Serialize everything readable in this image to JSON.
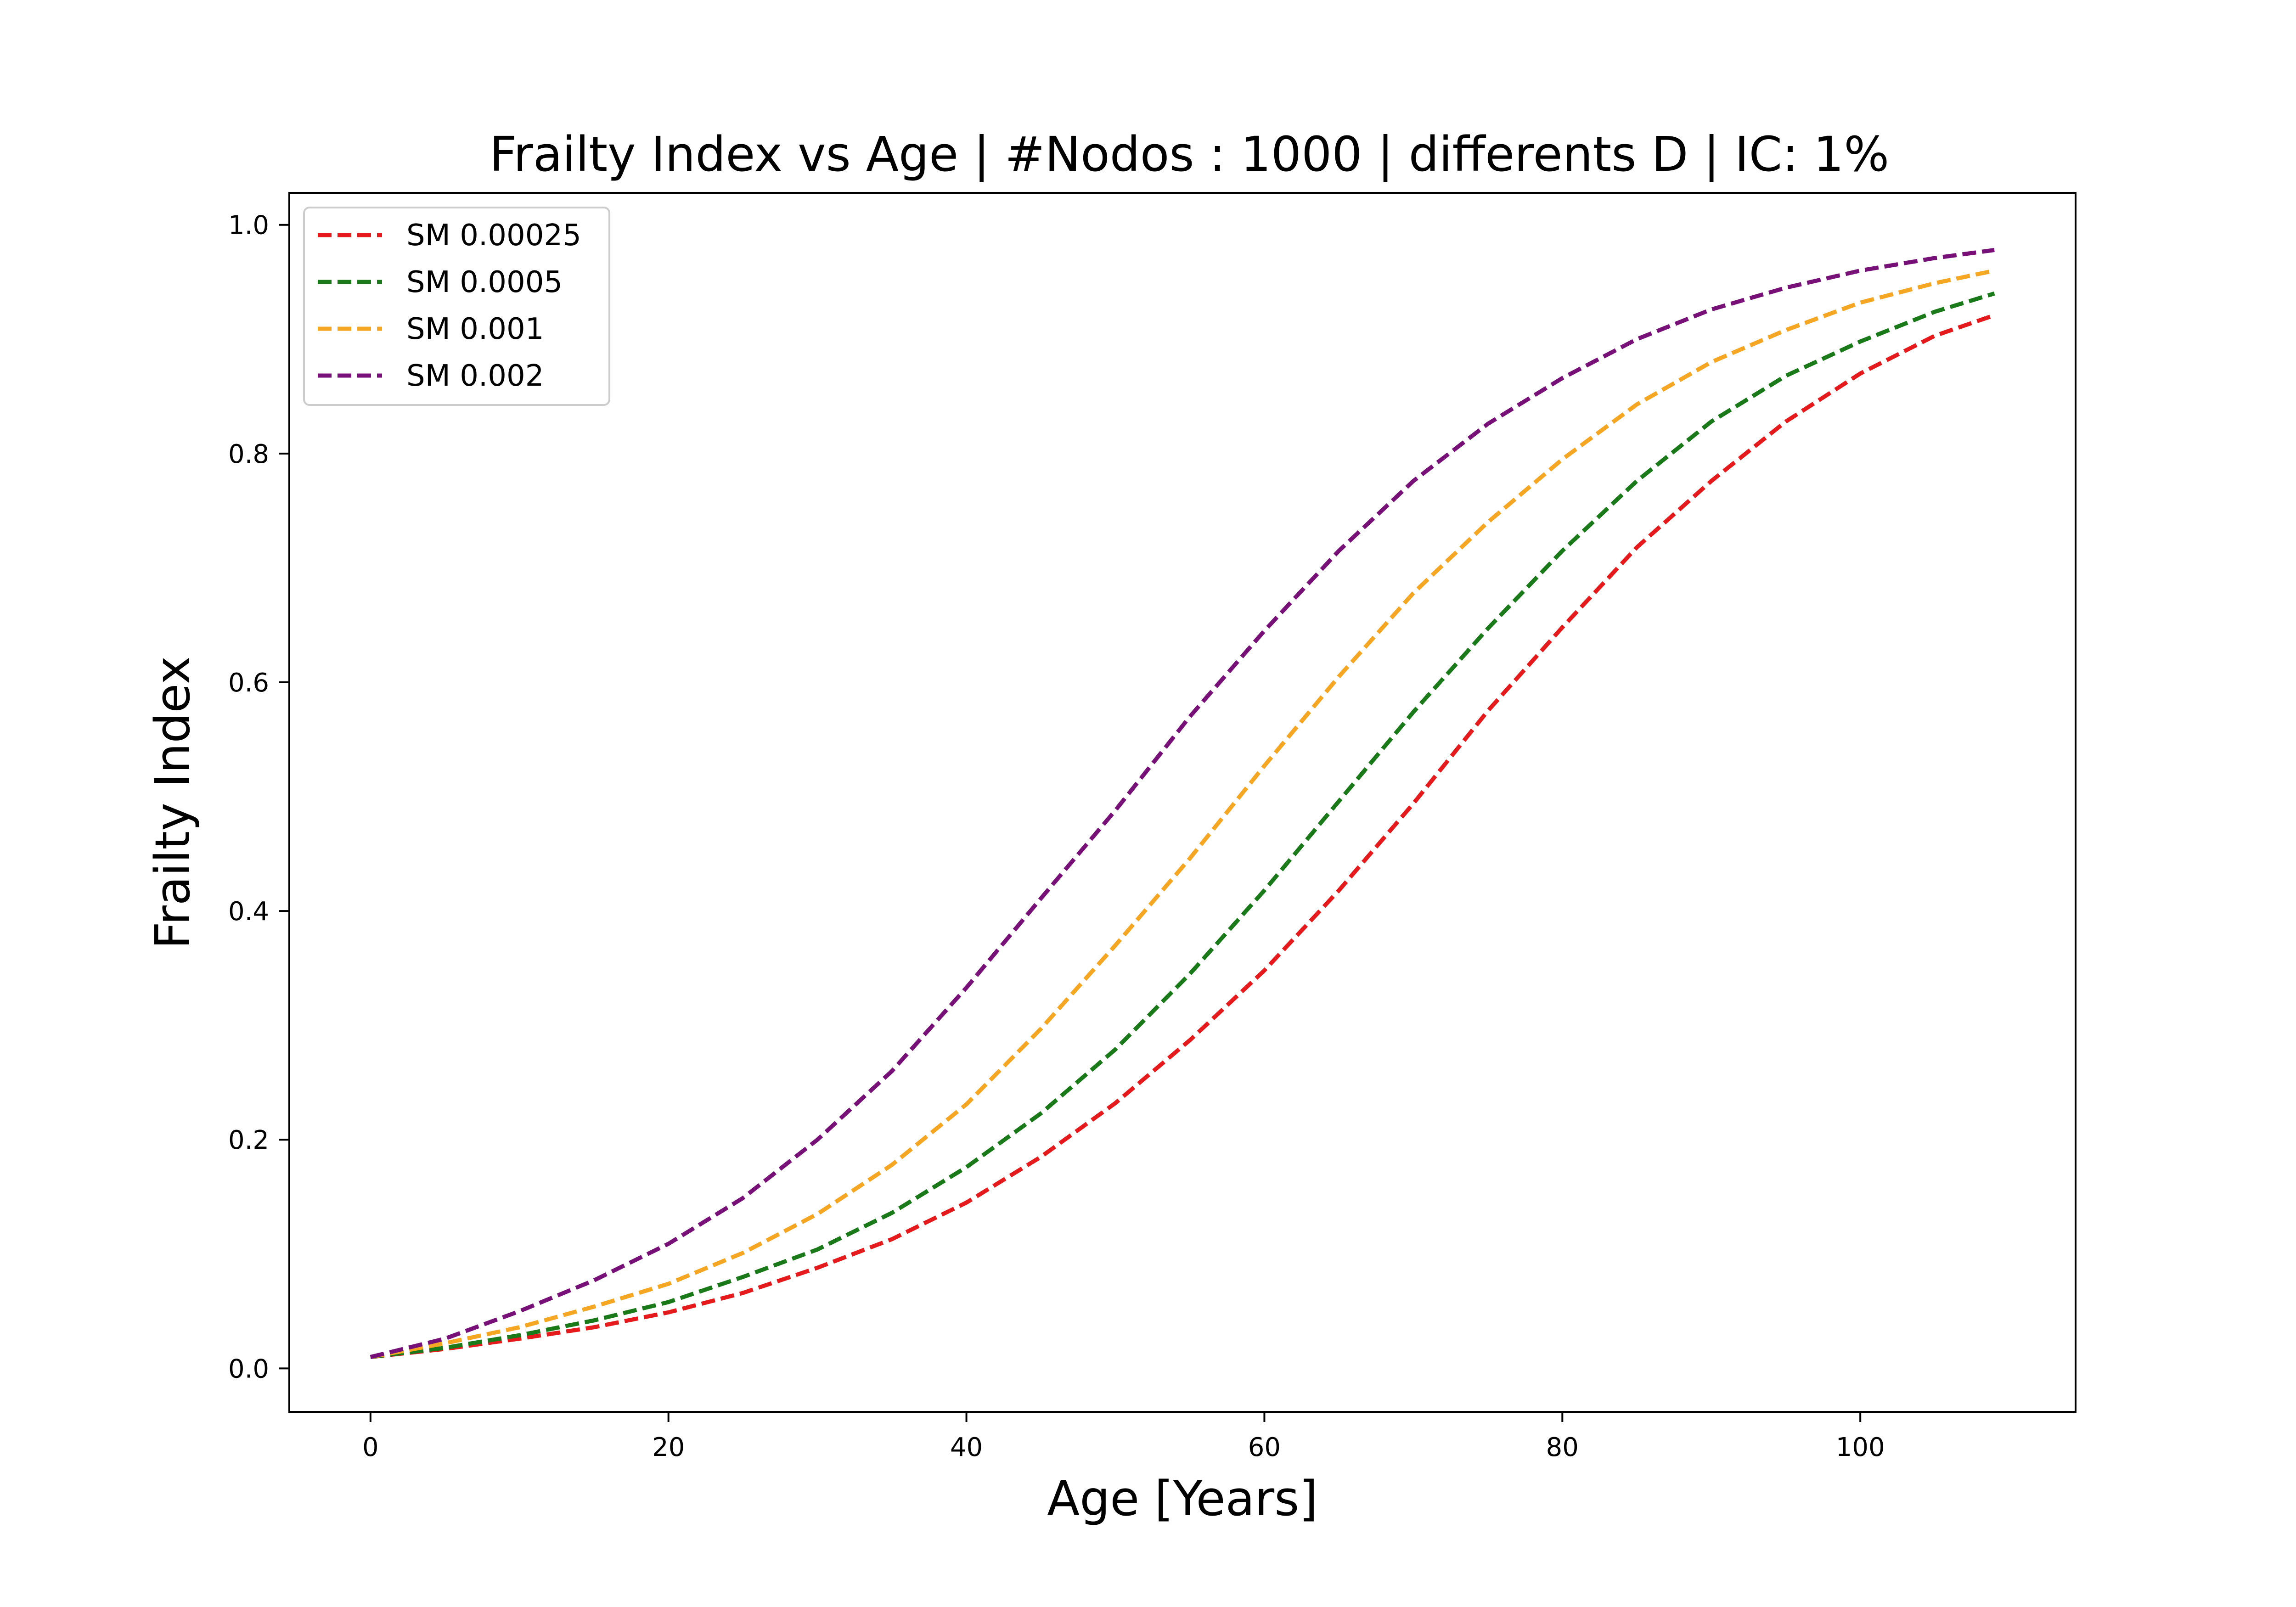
{
  "chart_data": {
    "type": "line",
    "title": "Frailty Index vs Age | #Nodos : 1000 | differents D | IC: 1%",
    "xlabel": "Age [Years]",
    "ylabel": "Frailty Index",
    "xlim": [
      -5.45,
      114.45
    ],
    "ylim": [
      -0.038,
      1.028
    ],
    "xticks": [
      0,
      20,
      40,
      60,
      80,
      100
    ],
    "xtick_labels": [
      "0",
      "20",
      "40",
      "60",
      "80",
      "100"
    ],
    "yticks": [
      0.0,
      0.2,
      0.4,
      0.6,
      0.8,
      1.0
    ],
    "ytick_labels": [
      "0.0",
      "0.2",
      "0.4",
      "0.6",
      "0.8",
      "1.0"
    ],
    "grid": false,
    "legend_position": "top-left",
    "line_style": "dashed",
    "x": [
      0,
      5,
      10,
      15,
      20,
      25,
      30,
      35,
      40,
      45,
      50,
      55,
      60,
      65,
      70,
      75,
      80,
      85,
      90,
      95,
      100,
      105,
      109
    ],
    "series": [
      {
        "name": "SM 0.00025",
        "color": "#e41a1c",
        "values": [
          0.01,
          0.017,
          0.026,
          0.036,
          0.049,
          0.066,
          0.088,
          0.113,
          0.145,
          0.185,
          0.232,
          0.287,
          0.348,
          0.418,
          0.494,
          0.575,
          0.648,
          0.718,
          0.776,
          0.828,
          0.87,
          0.903,
          0.921
        ]
      },
      {
        "name": "SM 0.0005",
        "color": "#1a7a1a",
        "values": [
          0.01,
          0.018,
          0.029,
          0.042,
          0.058,
          0.08,
          0.104,
          0.136,
          0.176,
          0.223,
          0.279,
          0.345,
          0.418,
          0.496,
          0.574,
          0.647,
          0.715,
          0.776,
          0.828,
          0.868,
          0.898,
          0.924,
          0.94
        ]
      },
      {
        "name": "SM 0.001",
        "color": "#f5a623",
        "values": [
          0.01,
          0.022,
          0.036,
          0.054,
          0.074,
          0.101,
          0.135,
          0.178,
          0.231,
          0.297,
          0.37,
          0.446,
          0.527,
          0.605,
          0.678,
          0.74,
          0.795,
          0.843,
          0.88,
          0.908,
          0.932,
          0.949,
          0.96
        ]
      },
      {
        "name": "SM 0.002",
        "color": "#771177",
        "values": [
          0.01,
          0.026,
          0.05,
          0.077,
          0.109,
          0.149,
          0.2,
          0.26,
          0.333,
          0.411,
          0.488,
          0.57,
          0.645,
          0.715,
          0.776,
          0.826,
          0.866,
          0.9,
          0.926,
          0.945,
          0.96,
          0.971,
          0.978
        ]
      }
    ]
  }
}
